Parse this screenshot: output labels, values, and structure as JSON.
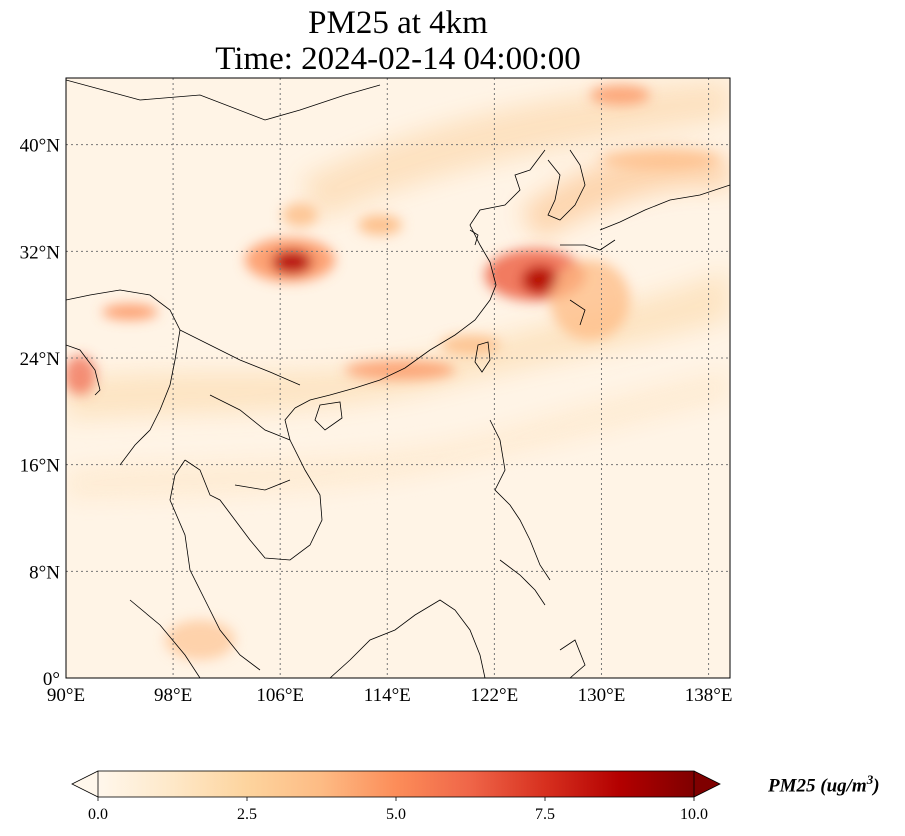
{
  "title": {
    "line1": "PM25 at 4km",
    "line2": "Time: 2024-02-14 04:00:00"
  },
  "map": {
    "lon_range": [
      90,
      139.6
    ],
    "lat_range": [
      0,
      45
    ],
    "lat_ticks": [
      {
        "value": 40,
        "label": "40°N"
      },
      {
        "value": 32,
        "label": "32°N"
      },
      {
        "value": 24,
        "label": "24°N"
      },
      {
        "value": 16,
        "label": "16°N"
      },
      {
        "value": 8,
        "label": "8°N"
      },
      {
        "value": 0,
        "label": "0°"
      }
    ],
    "lon_ticks": [
      {
        "value": 90,
        "label": "90°E"
      },
      {
        "value": 98,
        "label": "98°E"
      },
      {
        "value": 106,
        "label": "106°E"
      },
      {
        "value": 114,
        "label": "114°E"
      },
      {
        "value": 122,
        "label": "122°E"
      },
      {
        "value": 130,
        "label": "130°E"
      },
      {
        "value": 138,
        "label": "138°E"
      }
    ],
    "gridlines": true,
    "colormap": "OrRd"
  },
  "colorbar": {
    "ticks": [
      "0.0",
      "2.5",
      "5.0",
      "7.5",
      "10.0"
    ],
    "min": 0,
    "max": 10,
    "label_main": "PM25 (ug/m",
    "label_sup": "3",
    "label_close": ")",
    "colors": [
      "#fff7ec",
      "#fee8c8",
      "#fdd49e",
      "#fdbb84",
      "#fc8d59",
      "#ef6548",
      "#d7301f",
      "#b30000",
      "#7f0000"
    ]
  }
}
